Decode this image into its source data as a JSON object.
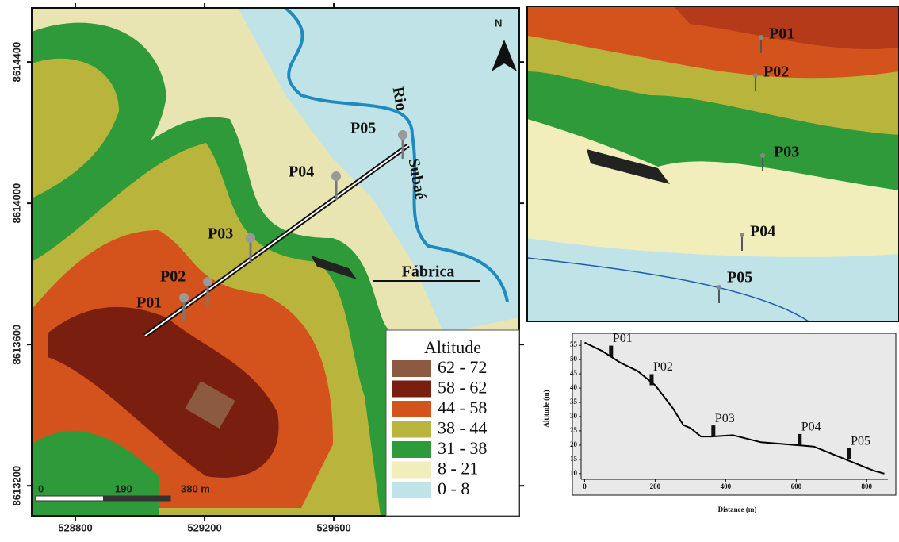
{
  "map": {
    "xlim": [
      528665,
      530174
    ],
    "ylim": [
      8613115,
      8614553
    ],
    "xticks": [
      528800,
      529200,
      529600
    ],
    "yticks": [
      8613200,
      8613600,
      8614000,
      8614400
    ],
    "labels": {
      "north": "N",
      "river_1": "Rio",
      "river_2": "Subaé",
      "factory": "Fábrica"
    },
    "points": [
      "P01",
      "P02",
      "P03",
      "P04",
      "P05"
    ],
    "scalebar": [
      "0",
      "190",
      "380 m"
    ],
    "legend": {
      "title": "Altitude",
      "items": [
        {
          "label": "62 - 72",
          "color": "#8c5a40"
        },
        {
          "label": "58 - 62",
          "color": "#7a1e10"
        },
        {
          "label": "44 - 58",
          "color": "#d4521c"
        },
        {
          "label": "38 - 44",
          "color": "#b9b43c"
        },
        {
          "label": "31 - 38",
          "color": "#2f9a3a"
        },
        {
          "label": "8 - 21",
          "color": "#f1eebb"
        },
        {
          "label": "0 - 8",
          "color": "#bfe3e6"
        }
      ]
    }
  },
  "view3d": {
    "points": [
      "P01",
      "P02",
      "P03",
      "P04",
      "P05"
    ]
  },
  "chart_data": {
    "type": "line",
    "xlabel": "Distance (m)",
    "ylabel": "Altitude (m)",
    "x": [
      0,
      50,
      100,
      150,
      200,
      250,
      280,
      300,
      330,
      360,
      420,
      500,
      600,
      650,
      700,
      780,
      820,
      850
    ],
    "values": [
      56,
      53,
      49,
      46,
      41,
      33,
      27,
      26,
      23,
      23,
      23.5,
      21,
      20,
      19.5,
      17,
      13,
      11,
      10
    ],
    "color": "#000000",
    "xlim": [
      -10,
      860
    ],
    "ylim": [
      8,
      57
    ],
    "xticks": [
      0,
      200,
      400,
      600,
      800
    ],
    "yticks": [
      10,
      15,
      20,
      25,
      30,
      35,
      40,
      45,
      50,
      55
    ],
    "markers": [
      {
        "label": "P01",
        "x": 75,
        "y": 51
      },
      {
        "label": "P02",
        "x": 190,
        "y": 41
      },
      {
        "label": "P03",
        "x": 365,
        "y": 23
      },
      {
        "label": "P04",
        "x": 610,
        "y": 20
      },
      {
        "label": "P05",
        "x": 750,
        "y": 15
      }
    ]
  }
}
